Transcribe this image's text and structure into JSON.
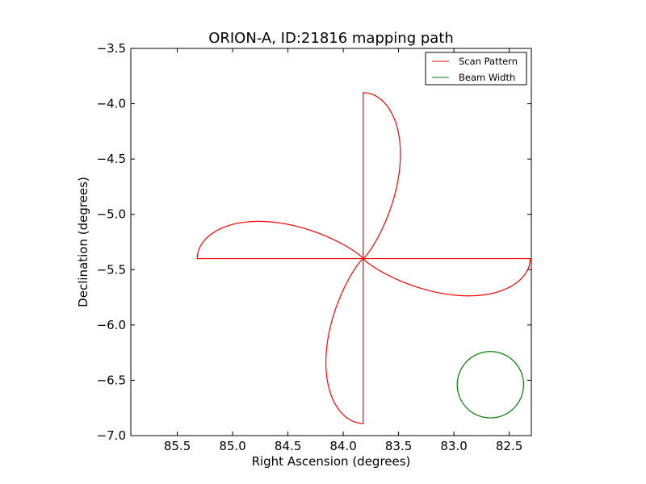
{
  "chart_data": {
    "type": "line",
    "title": "ORION-A, ID:21816 mapping path",
    "xlabel": "Right Ascension (degrees)",
    "ylabel": "Declination (degrees)",
    "xlim": [
      85.92,
      82.3
    ],
    "ylim": [
      -7.0,
      -3.5
    ],
    "x_ticks": [
      85.5,
      85.0,
      84.5,
      84.0,
      83.5,
      83.0,
      82.5
    ],
    "x_tick_labels": [
      "85.5",
      "85.0",
      "84.5",
      "84.0",
      "83.5",
      "83.0",
      "82.5"
    ],
    "y_ticks": [
      -3.5,
      -4.0,
      -4.5,
      -5.0,
      -5.5,
      -6.0,
      -6.5,
      -7.0
    ],
    "y_tick_labels": [
      "−3.5",
      "−4.0",
      "−4.5",
      "−5.0",
      "−5.5",
      "−6.0",
      "−6.5",
      "−7.0"
    ],
    "grid": false,
    "legend_position": "top-right",
    "series": [
      {
        "name": "Scan Pattern",
        "color": "#ff0000",
        "shape": "four-petal rose",
        "center": [
          83.82,
          -5.4
        ],
        "petal_tips": [
          [
            83.82,
            -3.9
          ],
          [
            82.31,
            -5.4
          ],
          [
            83.82,
            -6.89
          ],
          [
            85.32,
            -5.4
          ]
        ],
        "petal_half_width": 0.41
      },
      {
        "name": "Beam Width",
        "color": "#008000",
        "shape": "circle",
        "center": [
          82.67,
          -6.54
        ],
        "radius": 0.3
      }
    ]
  }
}
